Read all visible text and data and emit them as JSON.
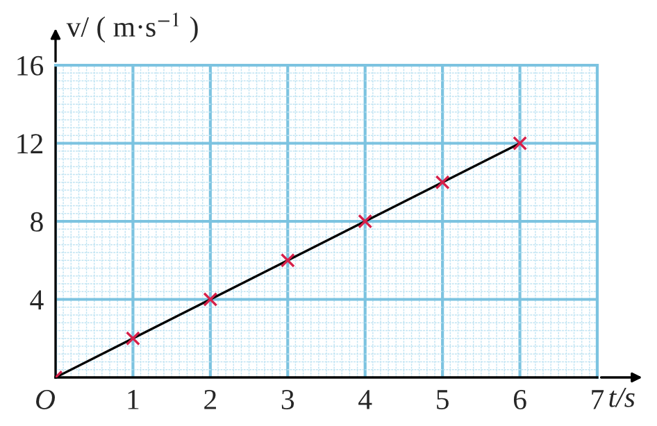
{
  "chart_data": {
    "type": "line",
    "xlabel": "t/s",
    "ylabel": "v/ ( m·s$^{−1}$ )",
    "x": [
      0,
      1,
      2,
      3,
      4,
      5,
      6
    ],
    "series": [
      {
        "color": "#000000",
        "values": [
          0,
          2,
          4,
          6,
          8,
          10,
          12
        ],
        "marker": "none"
      },
      {
        "type": "scatter",
        "color": "#d6204a",
        "values": [
          0,
          2,
          4,
          6,
          8,
          10,
          12
        ],
        "marker": "cross"
      }
    ],
    "xlim": [
      0,
      7
    ],
    "ylim": [
      0,
      16
    ],
    "xticks": [
      {
        "value": 0,
        "label": "O"
      },
      {
        "value": 0.1,
        "label": null
      },
      {
        "value": 0.2,
        "label": null
      },
      {
        "value": 0.3,
        "label": null
      },
      {
        "value": 0.4,
        "label": null
      },
      {
        "value": 0.5,
        "label": null
      },
      {
        "value": 0.6,
        "label": null
      },
      {
        "value": 0.7,
        "label": null
      },
      {
        "value": 0.8,
        "label": null
      },
      {
        "value": 0.9,
        "label": null
      },
      1,
      {
        "value": 1.1,
        "label": null
      },
      {
        "value": 1.2,
        "label": null
      },
      {
        "value": 1.3,
        "label": null
      },
      {
        "value": 1.4,
        "label": null
      },
      {
        "value": 1.5,
        "label": null
      },
      {
        "value": 1.6,
        "label": null
      },
      {
        "value": 1.7,
        "label": null
      },
      {
        "value": 1.8,
        "label": null
      },
      {
        "value": 1.9,
        "label": null
      },
      2,
      {
        "value": 2.1,
        "label": null
      },
      {
        "value": 2.2,
        "label": null
      },
      {
        "value": 2.3,
        "label": null
      },
      {
        "value": 2.4,
        "label": null
      },
      {
        "value": 2.5,
        "label": null
      },
      {
        "value": 2.6,
        "label": null
      },
      {
        "value": 2.7,
        "label": null
      },
      {
        "value": 2.8,
        "label": null
      },
      {
        "value": 2.9,
        "label": null
      },
      3,
      {
        "value": 3.1,
        "label": null
      },
      {
        "value": 3.2,
        "label": null
      },
      {
        "value": 3.3,
        "label": null
      },
      {
        "value": 3.4,
        "label": null
      },
      {
        "value": 3.5,
        "label": null
      },
      {
        "value": 3.6,
        "label": null
      },
      {
        "value": 3.7,
        "label": null
      },
      {
        "value": 3.8,
        "label": null
      },
      {
        "value": 3.9,
        "label": null
      },
      4,
      {
        "value": 4.1,
        "label": null
      },
      {
        "value": 4.2,
        "label": null
      },
      {
        "value": 4.3,
        "label": null
      },
      {
        "value": 4.4,
        "label": null
      },
      {
        "value": 4.5,
        "label": null
      },
      {
        "value": 4.6,
        "label": null
      },
      {
        "value": 4.7,
        "label": null
      },
      {
        "value": 4.8,
        "label": null
      },
      {
        "value": 4.9,
        "label": null
      },
      5,
      {
        "value": 5.1,
        "label": null
      },
      {
        "value": 5.2,
        "label": null
      },
      {
        "value": 5.3,
        "label": null
      },
      {
        "value": 5.4,
        "label": null
      },
      {
        "value": 5.5,
        "label": null
      },
      {
        "value": 5.6,
        "label": null
      },
      {
        "value": 5.7,
        "label": null
      },
      {
        "value": 5.8,
        "label": null
      },
      {
        "value": 5.9,
        "label": null
      },
      6,
      {
        "value": 6.1,
        "label": null
      },
      {
        "value": 6.2,
        "label": null
      },
      {
        "value": 6.3,
        "label": null
      },
      {
        "value": 6.4,
        "label": null
      },
      {
        "value": 6.5,
        "label": null
      },
      {
        "value": 6.6,
        "label": null
      },
      {
        "value": 6.7,
        "label": null
      },
      {
        "value": 6.8,
        "label": null
      },
      {
        "value": 6.9,
        "label": null
      },
      7
    ],
    "yticks": [
      {
        "value": 0.4,
        "label": null
      },
      {
        "value": 0.8,
        "label": null
      },
      {
        "value": 1.2,
        "label": null
      },
      {
        "value": 1.6,
        "label": null
      },
      {
        "value": 2,
        "label": null
      },
      {
        "value": 2.4,
        "label": null
      },
      {
        "value": 2.8,
        "label": null
      },
      {
        "value": 3.2,
        "label": null
      },
      {
        "value": 3.6,
        "label": null
      },
      4,
      {
        "value": 4.4,
        "label": null
      },
      {
        "value": 4.8,
        "label": null
      },
      {
        "value": 5.2,
        "label": null
      },
      {
        "value": 5.6,
        "label": null
      },
      {
        "value": 6,
        "label": null
      },
      {
        "value": 6.4,
        "label": null
      },
      {
        "value": 6.8,
        "label": null
      },
      {
        "value": 7.2,
        "label": null
      },
      {
        "value": 7.6,
        "label": null
      },
      8,
      {
        "value": 8.4,
        "label": null
      },
      {
        "value": 8.8,
        "label": null
      },
      {
        "value": 9.2,
        "label": null
      },
      {
        "value": 9.6,
        "label": null
      },
      {
        "value": 10,
        "label": null
      },
      {
        "value": 10.4,
        "label": null
      },
      {
        "value": 10.8,
        "label": null
      },
      {
        "value": 11.2,
        "label": null
      },
      {
        "value": 11.6,
        "label": null
      },
      12,
      {
        "value": 12.4,
        "label": null
      },
      {
        "value": 12.8,
        "label": null
      },
      {
        "value": 13.2,
        "label": null
      },
      {
        "value": 13.6,
        "label": null
      },
      {
        "value": 14,
        "label": null
      },
      {
        "value": 14.4,
        "label": null
      },
      {
        "value": 14.8,
        "label": null
      },
      {
        "value": 15.2,
        "label": null
      },
      {
        "value": 15.6,
        "label": null
      },
      16
    ],
    "grid": true,
    "legend": false
  }
}
